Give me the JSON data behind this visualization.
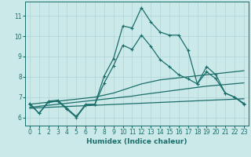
{
  "xlabel": "Humidex (Indice chaleur)",
  "xlim": [
    -0.5,
    23.5
  ],
  "ylim": [
    5.6,
    11.7
  ],
  "yticks": [
    6,
    7,
    8,
    9,
    10,
    11
  ],
  "xticks": [
    0,
    1,
    2,
    3,
    4,
    5,
    6,
    7,
    8,
    9,
    10,
    11,
    12,
    13,
    14,
    15,
    16,
    17,
    18,
    19,
    20,
    21,
    22,
    23
  ],
  "bg_color": "#cce9ea",
  "grid_color": "#b0d4d6",
  "line_color": "#1a6e6a",
  "series": {
    "line1": [
      6.7,
      6.2,
      6.8,
      6.85,
      6.45,
      6.05,
      6.65,
      6.65,
      8.05,
      8.9,
      10.5,
      10.4,
      11.4,
      10.7,
      10.2,
      10.05,
      10.05,
      9.3,
      7.65,
      8.5,
      8.1,
      7.2,
      7.0,
      6.7
    ],
    "line2": [
      6.65,
      6.2,
      6.75,
      6.8,
      6.4,
      6.0,
      6.6,
      6.65,
      7.7,
      8.55,
      9.55,
      9.35,
      10.05,
      9.5,
      8.85,
      8.5,
      8.1,
      7.9,
      7.65,
      8.25,
      7.9,
      7.2,
      7.0,
      6.65
    ],
    "trend_hi": [
      6.65,
      6.7,
      6.75,
      6.8,
      6.85,
      6.9,
      6.95,
      7.0,
      7.1,
      7.2,
      7.35,
      7.5,
      7.65,
      7.75,
      7.85,
      7.9,
      7.95,
      8.0,
      8.05,
      8.1,
      8.15,
      8.2,
      8.25,
      8.3
    ],
    "trend_lo": [
      6.5,
      6.55,
      6.6,
      6.65,
      6.7,
      6.75,
      6.8,
      6.85,
      6.9,
      6.95,
      7.0,
      7.05,
      7.12,
      7.18,
      7.24,
      7.3,
      7.36,
      7.42,
      7.48,
      7.54,
      7.58,
      7.62,
      7.66,
      7.7
    ],
    "flat": [
      6.45,
      6.48,
      6.5,
      6.52,
      6.54,
      6.56,
      6.58,
      6.6,
      6.62,
      6.64,
      6.66,
      6.68,
      6.7,
      6.72,
      6.74,
      6.76,
      6.78,
      6.8,
      6.82,
      6.84,
      6.86,
      6.88,
      6.9,
      6.92
    ]
  }
}
